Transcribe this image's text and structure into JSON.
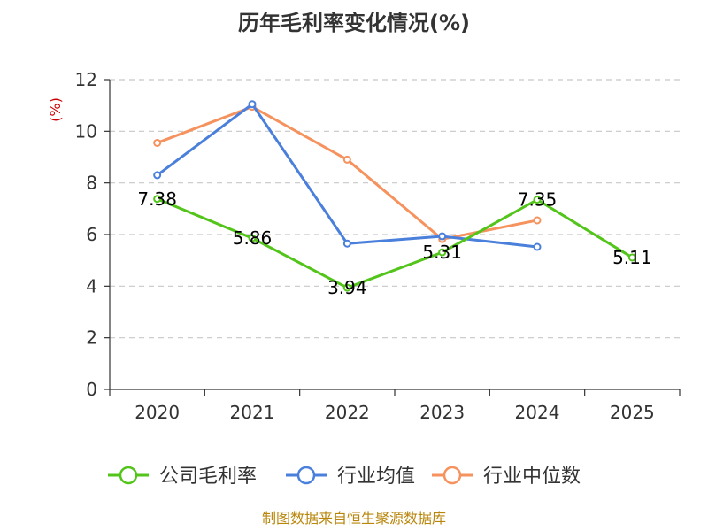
{
  "chart_data": {
    "type": "line",
    "title": "历年毛利率变化情况(%)",
    "ylabel": "(%)",
    "xlabel": "",
    "categories": [
      "2020",
      "2021",
      "2022",
      "2023",
      "2024",
      "2025"
    ],
    "ylim": [
      0,
      12
    ],
    "yticks": [
      0,
      2,
      4,
      6,
      8,
      10,
      12
    ],
    "grid": true,
    "legend_position": "bottom",
    "series": [
      {
        "name": "公司毛利率",
        "color": "#52c41a",
        "values": [
          7.38,
          5.86,
          3.94,
          5.31,
          7.35,
          5.11
        ],
        "labels": [
          "7.38",
          "5.86",
          "3.94",
          "5.31",
          "7.35",
          "5.11"
        ],
        "show_labels": true
      },
      {
        "name": "行业均值",
        "color": "#4a7fdb",
        "values": [
          8.3,
          11.05,
          5.65,
          5.93,
          5.52,
          null
        ],
        "show_labels": false
      },
      {
        "name": "行业中位数",
        "color": "#f5925e",
        "values": [
          9.55,
          10.95,
          8.9,
          5.82,
          6.55,
          null
        ],
        "show_labels": false
      }
    ],
    "source": "制图数据来自恒生聚源数据库"
  }
}
